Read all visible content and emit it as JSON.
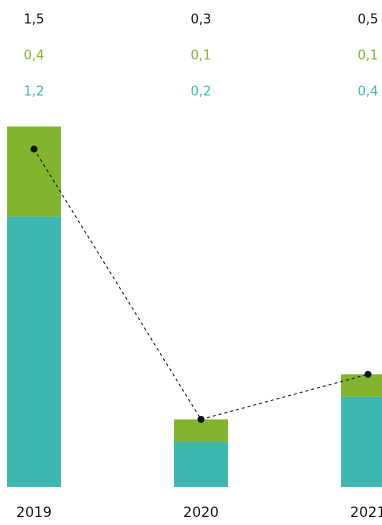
{
  "chart_data": {
    "type": "bar",
    "stacked": true,
    "categories": [
      "2019",
      "2020",
      "2021"
    ],
    "series": [
      {
        "key": "lower",
        "values": [
          1.2,
          0.2,
          0.4
        ],
        "labels": [
          "1,2",
          "0,2",
          "0,4"
        ],
        "color": "#3db8b0"
      },
      {
        "key": "upper",
        "values": [
          0.4,
          0.1,
          0.1
        ],
        "labels": [
          "0,4",
          "0,1",
          "0,1"
        ],
        "color": "#82b52d"
      }
    ],
    "totals": {
      "values": [
        1.5,
        0.3,
        0.5
      ],
      "labels": [
        "1,5",
        "0,3",
        "0,5"
      ],
      "color": "#111111"
    },
    "total_line": {
      "style": "dashed",
      "color": "#111111",
      "markers": true
    },
    "ylim": [
      0,
      1.6
    ],
    "grid": false,
    "legend": "none",
    "title": "",
    "xlabel": "",
    "ylabel": ""
  }
}
